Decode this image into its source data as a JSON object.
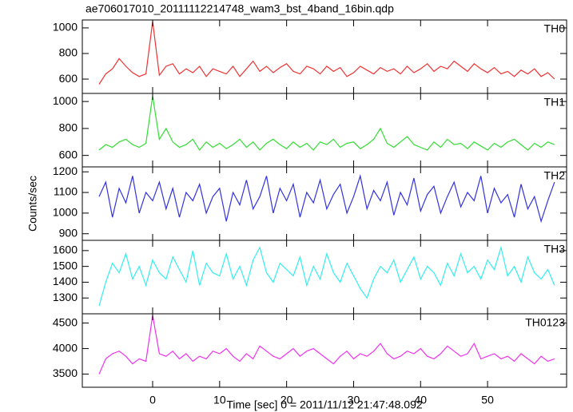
{
  "chart_data": [
    {
      "type": "line",
      "title": "ae706017010_20111112214748_wam3_bst_4band_16bin.qdp",
      "label": "TH0",
      "x": [
        -8,
        -7,
        -6,
        -5,
        -4,
        -3,
        -2,
        -1,
        0,
        1,
        2,
        3,
        4,
        5,
        6,
        7,
        8,
        9,
        10,
        11,
        12,
        13,
        14,
        15,
        16,
        17,
        18,
        19,
        20,
        21,
        22,
        23,
        24,
        25,
        26,
        27,
        28,
        29,
        30,
        31,
        32,
        33,
        34,
        35,
        36,
        37,
        38,
        39,
        40,
        41,
        42,
        43,
        44,
        45,
        46,
        47,
        48,
        49,
        50,
        51,
        52,
        53,
        54,
        55,
        56,
        57,
        58,
        59,
        60
      ],
      "series": [
        {
          "color": "#ee3333",
          "values": [
            560,
            640,
            680,
            760,
            700,
            650,
            620,
            640,
            1050,
            630,
            700,
            720,
            640,
            680,
            650,
            700,
            620,
            680,
            660,
            640,
            700,
            620,
            680,
            740,
            660,
            700,
            650,
            690,
            720,
            660,
            640,
            700,
            680,
            640,
            700,
            660,
            690,
            620,
            650,
            700,
            670,
            640,
            690,
            660,
            680,
            640,
            700,
            650,
            680,
            720,
            660,
            700,
            680,
            740,
            700,
            660,
            720,
            680,
            650,
            690,
            640,
            660,
            620,
            670,
            640,
            680,
            620,
            650,
            600
          ]
        }
      ],
      "ylim": [
        488,
        1062
      ],
      "yticks": [
        600,
        800,
        1000
      ]
    },
    {
      "type": "line",
      "label": "TH1",
      "x": [
        -8,
        -7,
        -6,
        -5,
        -4,
        -3,
        -2,
        -1,
        0,
        1,
        2,
        3,
        4,
        5,
        6,
        7,
        8,
        9,
        10,
        11,
        12,
        13,
        14,
        15,
        16,
        17,
        18,
        19,
        20,
        21,
        22,
        23,
        24,
        25,
        26,
        27,
        28,
        29,
        30,
        31,
        32,
        33,
        34,
        35,
        36,
        37,
        38,
        39,
        40,
        41,
        42,
        43,
        44,
        45,
        46,
        47,
        48,
        49,
        50,
        51,
        52,
        53,
        54,
        55,
        56,
        57,
        58,
        59,
        60
      ],
      "series": [
        {
          "color": "#33dd33",
          "values": [
            640,
            680,
            660,
            700,
            720,
            680,
            660,
            690,
            1040,
            720,
            800,
            700,
            660,
            680,
            720,
            640,
            700,
            660,
            690,
            650,
            680,
            720,
            660,
            700,
            640,
            690,
            720,
            680,
            650,
            700,
            660,
            690,
            640,
            700,
            680,
            720,
            660,
            690,
            700,
            650,
            680,
            720,
            800,
            690,
            660,
            700,
            740,
            680,
            660,
            640,
            700,
            660,
            720,
            680,
            690,
            650,
            700,
            670,
            640,
            690,
            660,
            700,
            720,
            680,
            640,
            690,
            660,
            700,
            680
          ]
        }
      ],
      "ylim": [
        515,
        1060
      ],
      "yticks": [
        600,
        800,
        1000
      ]
    },
    {
      "type": "line",
      "label": "TH2",
      "y_label": "Counts/sec",
      "x": [
        -8,
        -7,
        -6,
        -5,
        -4,
        -3,
        -2,
        -1,
        0,
        1,
        2,
        3,
        4,
        5,
        6,
        7,
        8,
        9,
        10,
        11,
        12,
        13,
        14,
        15,
        16,
        17,
        18,
        19,
        20,
        21,
        22,
        23,
        24,
        25,
        26,
        27,
        28,
        29,
        30,
        31,
        32,
        33,
        34,
        35,
        36,
        37,
        38,
        39,
        40,
        41,
        42,
        43,
        44,
        45,
        46,
        47,
        48,
        49,
        50,
        51,
        52,
        53,
        54,
        55,
        56,
        57,
        58,
        59,
        60
      ],
      "series": [
        {
          "color": "#3333dd",
          "values": [
            1080,
            1150,
            980,
            1120,
            1050,
            1180,
            1000,
            1100,
            1060,
            1150,
            1020,
            1120,
            980,
            1100,
            1060,
            1140,
            1000,
            1080,
            1120,
            960,
            1100,
            1040,
            1160,
            1020,
            1080,
            1180,
            1000,
            1120,
            1060,
            1140,
            980,
            1100,
            1050,
            1160,
            1020,
            1090,
            1140,
            1000,
            1080,
            1180,
            1020,
            1110,
            1060,
            1150,
            990,
            1100,
            1040,
            1170,
            1010,
            1090,
            1130,
            1000,
            1080,
            1150,
            1030,
            1100,
            1060,
            1180,
            1000,
            1120,
            1050,
            1090,
            980,
            1140,
            1020,
            1080,
            960,
            1060,
            1150
          ]
        }
      ],
      "ylim": [
        868,
        1224
      ],
      "yticks": [
        900,
        1000,
        1100,
        1200
      ]
    },
    {
      "type": "line",
      "label": "TH3",
      "x": [
        -8,
        -7,
        -6,
        -5,
        -4,
        -3,
        -2,
        -1,
        0,
        1,
        2,
        3,
        4,
        5,
        6,
        7,
        8,
        9,
        10,
        11,
        12,
        13,
        14,
        15,
        16,
        17,
        18,
        19,
        20,
        21,
        22,
        23,
        24,
        25,
        26,
        27,
        28,
        29,
        30,
        31,
        32,
        33,
        34,
        35,
        36,
        37,
        38,
        39,
        40,
        41,
        42,
        43,
        44,
        45,
        46,
        47,
        48,
        49,
        50,
        51,
        52,
        53,
        54,
        55,
        56,
        57,
        58,
        59,
        60
      ],
      "series": [
        {
          "color": "#33eeee",
          "values": [
            1250,
            1400,
            1520,
            1460,
            1580,
            1420,
            1500,
            1380,
            1540,
            1460,
            1420,
            1560,
            1480,
            1400,
            1600,
            1380,
            1520,
            1460,
            1440,
            1580,
            1420,
            1500,
            1380,
            1540,
            1620,
            1460,
            1400,
            1520,
            1480,
            1440,
            1560,
            1380,
            1500,
            1420,
            1580,
            1460,
            1400,
            1520,
            1440,
            1360,
            1300,
            1420,
            1500,
            1460,
            1540,
            1400,
            1480,
            1560,
            1420,
            1500,
            1460,
            1380,
            1520,
            1440,
            1580,
            1460,
            1500,
            1420,
            1540,
            1480,
            1620,
            1440,
            1500,
            1400,
            1560,
            1460,
            1420,
            1480,
            1380
          ]
        }
      ],
      "ylim": [
        1200,
        1665
      ],
      "yticks": [
        1300,
        1400,
        1500,
        1600
      ]
    },
    {
      "type": "line",
      "label": "TH0123",
      "x_label": "Time [sec] 0 = 2011/11/12 21:47:48.092",
      "x": [
        -8,
        -7,
        -6,
        -5,
        -4,
        -3,
        -2,
        -1,
        0,
        1,
        2,
        3,
        4,
        5,
        6,
        7,
        8,
        9,
        10,
        11,
        12,
        13,
        14,
        15,
        16,
        17,
        18,
        19,
        20,
        21,
        22,
        23,
        24,
        25,
        26,
        27,
        28,
        29,
        30,
        31,
        32,
        33,
        34,
        35,
        36,
        37,
        38,
        39,
        40,
        41,
        42,
        43,
        44,
        45,
        46,
        47,
        48,
        49,
        50,
        51,
        52,
        53,
        54,
        55,
        56,
        57,
        58,
        59,
        60
      ],
      "series": [
        {
          "color": "#ee33ee",
          "values": [
            3500,
            3800,
            3900,
            3950,
            3850,
            3700,
            3800,
            3750,
            4650,
            3900,
            3850,
            3950,
            3800,
            3900,
            3750,
            3850,
            3800,
            3950,
            3900,
            4000,
            3850,
            3750,
            3900,
            3800,
            4050,
            3950,
            3850,
            3800,
            3900,
            4000,
            3850,
            3950,
            4000,
            3900,
            3800,
            3700,
            3850,
            3950,
            3800,
            3900,
            3850,
            3950,
            4100,
            3900,
            3800,
            3850,
            3950,
            3900,
            4000,
            3850,
            3800,
            3900,
            4050,
            3950,
            3850,
            3900,
            4100,
            3800,
            3850,
            3900,
            3800,
            3850,
            3750,
            3900,
            3800,
            3700,
            3850,
            3750,
            3800
          ]
        }
      ],
      "ylim": [
        3242,
        4682
      ],
      "yticks": [
        3500,
        4000,
        4500
      ],
      "xlim": [
        -10.5,
        61.8
      ],
      "xticks": [
        0,
        10,
        20,
        30,
        40,
        50
      ]
    }
  ]
}
